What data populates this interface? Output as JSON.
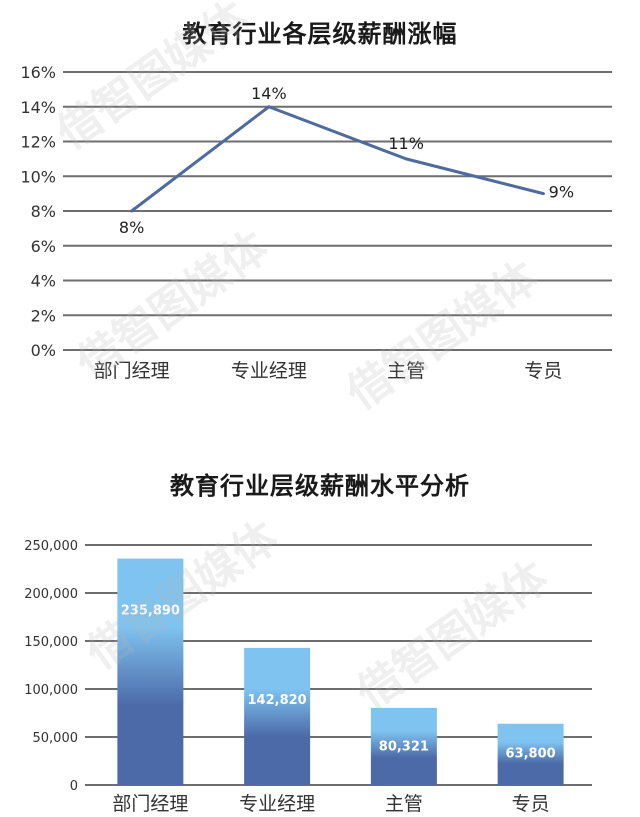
{
  "chart_data": [
    {
      "type": "line",
      "title": "教育行业各层级薪酬涨幅",
      "categories": [
        "部门经理",
        "专业经理",
        "主管",
        "专员"
      ],
      "values": [
        8,
        14,
        11,
        9
      ],
      "data_labels": [
        "8%",
        "14%",
        "11%",
        "9%"
      ],
      "y_ticks": [
        "0%",
        "2%",
        "4%",
        "6%",
        "8%",
        "10%",
        "12%",
        "14%",
        "16%"
      ],
      "ylim": [
        0,
        16
      ],
      "grid": true,
      "line_color": "#4f6b9e"
    },
    {
      "type": "bar",
      "title": "教育行业层级薪酬水平分析",
      "categories": [
        "部门经理",
        "专业经理",
        "主管",
        "专员"
      ],
      "values": [
        235890,
        142820,
        80321,
        63800
      ],
      "data_labels": [
        "235,890",
        "142,820",
        "80,321",
        "63,800"
      ],
      "y_ticks": [
        "0",
        "50,000",
        "100,000",
        "150,000",
        "200,000",
        "250,000"
      ],
      "ylim": [
        0,
        250000
      ],
      "grid": true,
      "bar_gradient": [
        "#7fc3f0",
        "#4c6aa8"
      ]
    }
  ],
  "watermark": "借智图媒体"
}
